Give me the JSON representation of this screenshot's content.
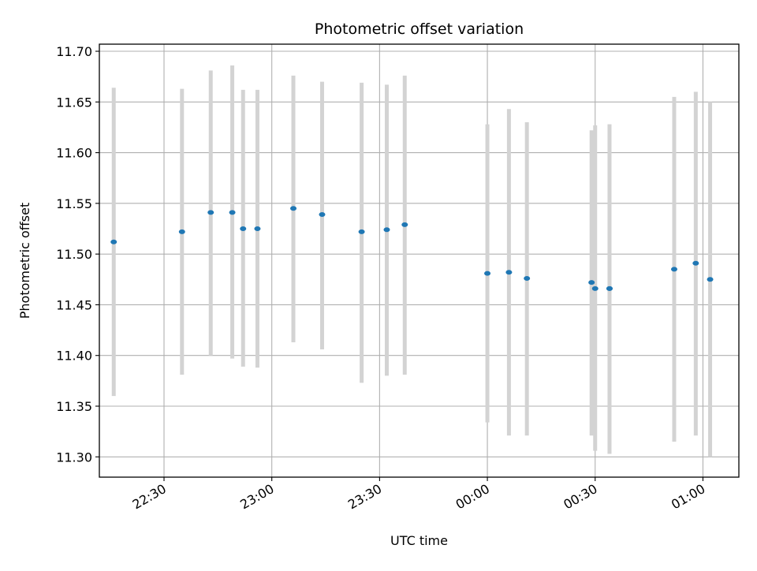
{
  "chart_data": {
    "type": "scatter",
    "title": "Photometric offset variation",
    "xlabel": "UTC time",
    "ylabel": "Photometric offset",
    "x_tick_labels": [
      "22:30",
      "23:00",
      "23:30",
      "00:00",
      "00:30",
      "01:00"
    ],
    "x_ticks": [
      "22:30",
      "23:00",
      "23:30",
      "00:00",
      "00:30",
      "01:00"
    ],
    "y_tick_labels": [
      "11.30",
      "11.35",
      "11.40",
      "11.45",
      "11.50",
      "11.55",
      "11.60",
      "11.65",
      "11.70"
    ],
    "ylim": [
      11.28,
      11.707
    ],
    "xlim": [
      "22:12",
      "01:10"
    ],
    "grid": true,
    "marker_color": "#1f77b4",
    "errorbar_color": "#d3d3d3",
    "points": [
      {
        "x": "22:16",
        "y": 11.512,
        "ylow": 11.36,
        "yhigh": 11.664
      },
      {
        "x": "22:35",
        "y": 11.522,
        "ylow": 11.381,
        "yhigh": 11.663
      },
      {
        "x": "22:43",
        "y": 11.541,
        "ylow": 11.4,
        "yhigh": 11.681
      },
      {
        "x": "22:49",
        "y": 11.541,
        "ylow": 11.397,
        "yhigh": 11.686
      },
      {
        "x": "22:52",
        "y": 11.525,
        "ylow": 11.389,
        "yhigh": 11.662
      },
      {
        "x": "22:56",
        "y": 11.525,
        "ylow": 11.388,
        "yhigh": 11.662
      },
      {
        "x": "23:06",
        "y": 11.545,
        "ylow": 11.413,
        "yhigh": 11.676
      },
      {
        "x": "23:14",
        "y": 11.539,
        "ylow": 11.406,
        "yhigh": 11.67
      },
      {
        "x": "23:25",
        "y": 11.522,
        "ylow": 11.373,
        "yhigh": 11.669
      },
      {
        "x": "23:32",
        "y": 11.524,
        "ylow": 11.38,
        "yhigh": 11.667
      },
      {
        "x": "23:37",
        "y": 11.529,
        "ylow": 11.381,
        "yhigh": 11.676
      },
      {
        "x": "00:00",
        "y": 11.481,
        "ylow": 11.334,
        "yhigh": 11.628
      },
      {
        "x": "00:06",
        "y": 11.482,
        "ylow": 11.321,
        "yhigh": 11.643
      },
      {
        "x": "00:11",
        "y": 11.476,
        "ylow": 11.321,
        "yhigh": 11.63
      },
      {
        "x": "00:29",
        "y": 11.472,
        "ylow": 11.321,
        "yhigh": 11.622
      },
      {
        "x": "00:30",
        "y": 11.466,
        "ylow": 11.306,
        "yhigh": 11.627
      },
      {
        "x": "00:34",
        "y": 11.466,
        "ylow": 11.303,
        "yhigh": 11.628
      },
      {
        "x": "00:34",
        "y": 11.466,
        "ylow": 11.303,
        "yhigh": 11.628
      },
      {
        "x": "00:52",
        "y": 11.485,
        "ylow": 11.315,
        "yhigh": 11.655
      },
      {
        "x": "00:58",
        "y": 11.491,
        "ylow": 11.321,
        "yhigh": 11.66
      },
      {
        "x": "01:02",
        "y": 11.475,
        "ylow": 11.3,
        "yhigh": 11.65
      }
    ]
  }
}
